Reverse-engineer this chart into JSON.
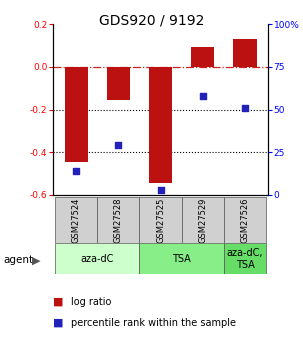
{
  "title": "GDS920 / 9192",
  "samples": [
    "GSM27524",
    "GSM27528",
    "GSM27525",
    "GSM27529",
    "GSM27526"
  ],
  "log_ratios": [
    -0.445,
    -0.155,
    -0.545,
    0.095,
    0.13
  ],
  "percentile_ranks": [
    14,
    29,
    3,
    58,
    51
  ],
  "left_ylim": [
    -0.6,
    0.2
  ],
  "right_ylim": [
    0,
    100
  ],
  "left_yticks": [
    -0.6,
    -0.4,
    -0.2,
    0.0,
    0.2
  ],
  "right_yticks": [
    0,
    25,
    50,
    75,
    100
  ],
  "right_yticklabels": [
    "0",
    "25",
    "50",
    "75",
    "100%"
  ],
  "bar_color": "#bb1111",
  "dot_color": "#2222bb",
  "groups": [
    {
      "label": "aza-dC",
      "start": 0,
      "end": 2,
      "color": "#ccffcc"
    },
    {
      "label": "TSA",
      "start": 2,
      "end": 4,
      "color": "#88ee88"
    },
    {
      "label": "aza-dC,\nTSA",
      "start": 4,
      "end": 5,
      "color": "#66dd66"
    }
  ],
  "legend_items": [
    {
      "color": "#bb1111",
      "label": " log ratio"
    },
    {
      "color": "#2222bb",
      "label": " percentile rank within the sample"
    }
  ],
  "bar_width": 0.55,
  "title_fontsize": 10,
  "tick_fontsize": 6.5,
  "sample_fontsize": 6,
  "group_fontsize": 7,
  "legend_fontsize": 7
}
